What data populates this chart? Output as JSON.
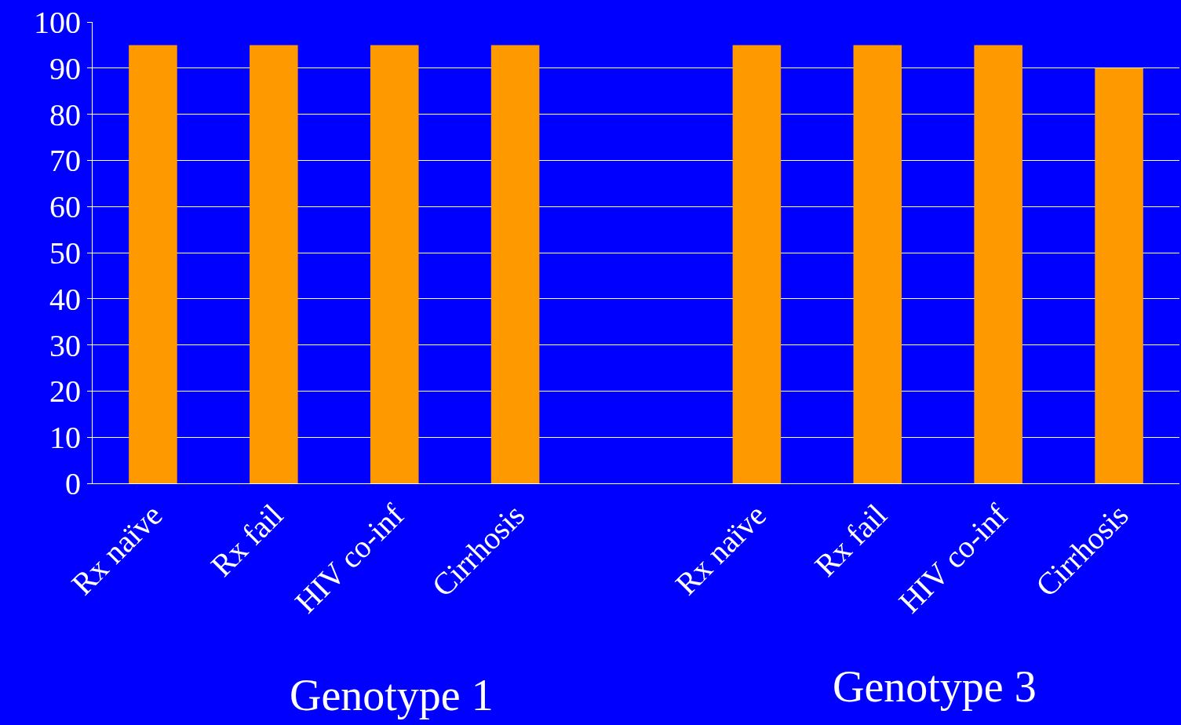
{
  "chart_data": {
    "type": "bar",
    "categories": [
      "Rx naïve",
      "Rx fail",
      "HIV co-inf",
      "Cirrhosis",
      null,
      "Rx naïve",
      "Rx fail",
      "HIV co-inf",
      "Cirrhosis"
    ],
    "values": [
      95,
      95,
      95,
      95,
      null,
      95,
      95,
      95,
      90
    ],
    "color": "#ff9900",
    "ylim": [
      0,
      100
    ],
    "yticks": [
      0,
      10,
      20,
      30,
      40,
      50,
      60,
      70,
      80,
      90,
      100
    ],
    "grid": "y",
    "annotations": [
      "Genotype 1",
      "Genotype 3"
    ]
  }
}
